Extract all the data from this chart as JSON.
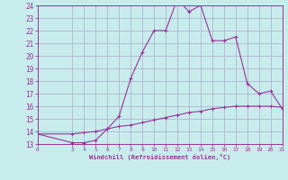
{
  "xlabel": "Windchill (Refroidissement éolien,°C)",
  "xlim": [
    0,
    21
  ],
  "ylim": [
    13,
    24
  ],
  "xticks": [
    0,
    3,
    4,
    5,
    6,
    7,
    8,
    9,
    10,
    11,
    12,
    13,
    14,
    15,
    16,
    17,
    18,
    19,
    20,
    21
  ],
  "yticks": [
    13,
    14,
    15,
    16,
    17,
    18,
    19,
    20,
    21,
    22,
    23,
    24
  ],
  "bg_color": "#c8ecec",
  "grid_color": "#aaaacc",
  "line_color": "#993399",
  "curve1_x": [
    0,
    3,
    4,
    5,
    6,
    7,
    8,
    9,
    10,
    11,
    12,
    13,
    14,
    15,
    16,
    17,
    18,
    19,
    20,
    21
  ],
  "curve1_y": [
    13.8,
    13.1,
    13.1,
    13.3,
    14.2,
    15.2,
    18.2,
    20.3,
    22.0,
    22.0,
    24.5,
    23.5,
    24.0,
    21.2,
    21.2,
    21.5,
    17.8,
    17.0,
    17.2,
    15.8
  ],
  "curve2_x": [
    0,
    3,
    4,
    5,
    6,
    7,
    8,
    9,
    10,
    11,
    12,
    13,
    14,
    15,
    16,
    17,
    18,
    19,
    20,
    21
  ],
  "curve2_y": [
    13.8,
    13.8,
    13.9,
    14.0,
    14.2,
    14.4,
    14.5,
    14.7,
    14.9,
    15.1,
    15.3,
    15.5,
    15.6,
    15.8,
    15.9,
    16.0,
    16.0,
    16.0,
    16.0,
    15.9
  ]
}
